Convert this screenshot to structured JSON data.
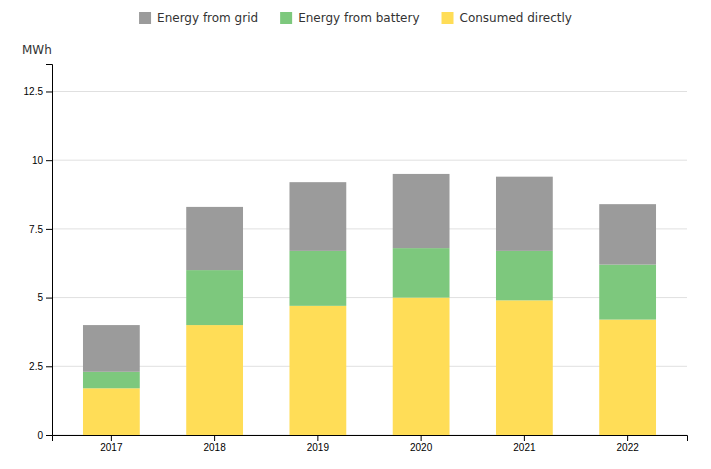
{
  "chart_data": {
    "type": "bar",
    "stacked": true,
    "y_label": "MWh",
    "categories": [
      "2017",
      "2018",
      "2019",
      "2020",
      "2021",
      "2022"
    ],
    "series": [
      {
        "name": "Consumed directly",
        "color": "#FFDD57",
        "values": [
          1.7,
          4.0,
          4.7,
          5.0,
          4.9,
          4.2
        ]
      },
      {
        "name": "Energy from battery",
        "color": "#7DC87D",
        "values": [
          0.6,
          2.0,
          2.0,
          1.8,
          1.8,
          2.0
        ]
      },
      {
        "name": "Energy from grid",
        "color": "#9B9B9B",
        "values": [
          1.7,
          2.3,
          2.5,
          2.7,
          2.7,
          2.2
        ]
      }
    ],
    "ylim": [
      0,
      13.5
    ],
    "yticks": [
      0,
      2.5,
      5,
      7.5,
      10,
      12.5
    ],
    "grid": true,
    "legend": "top"
  }
}
